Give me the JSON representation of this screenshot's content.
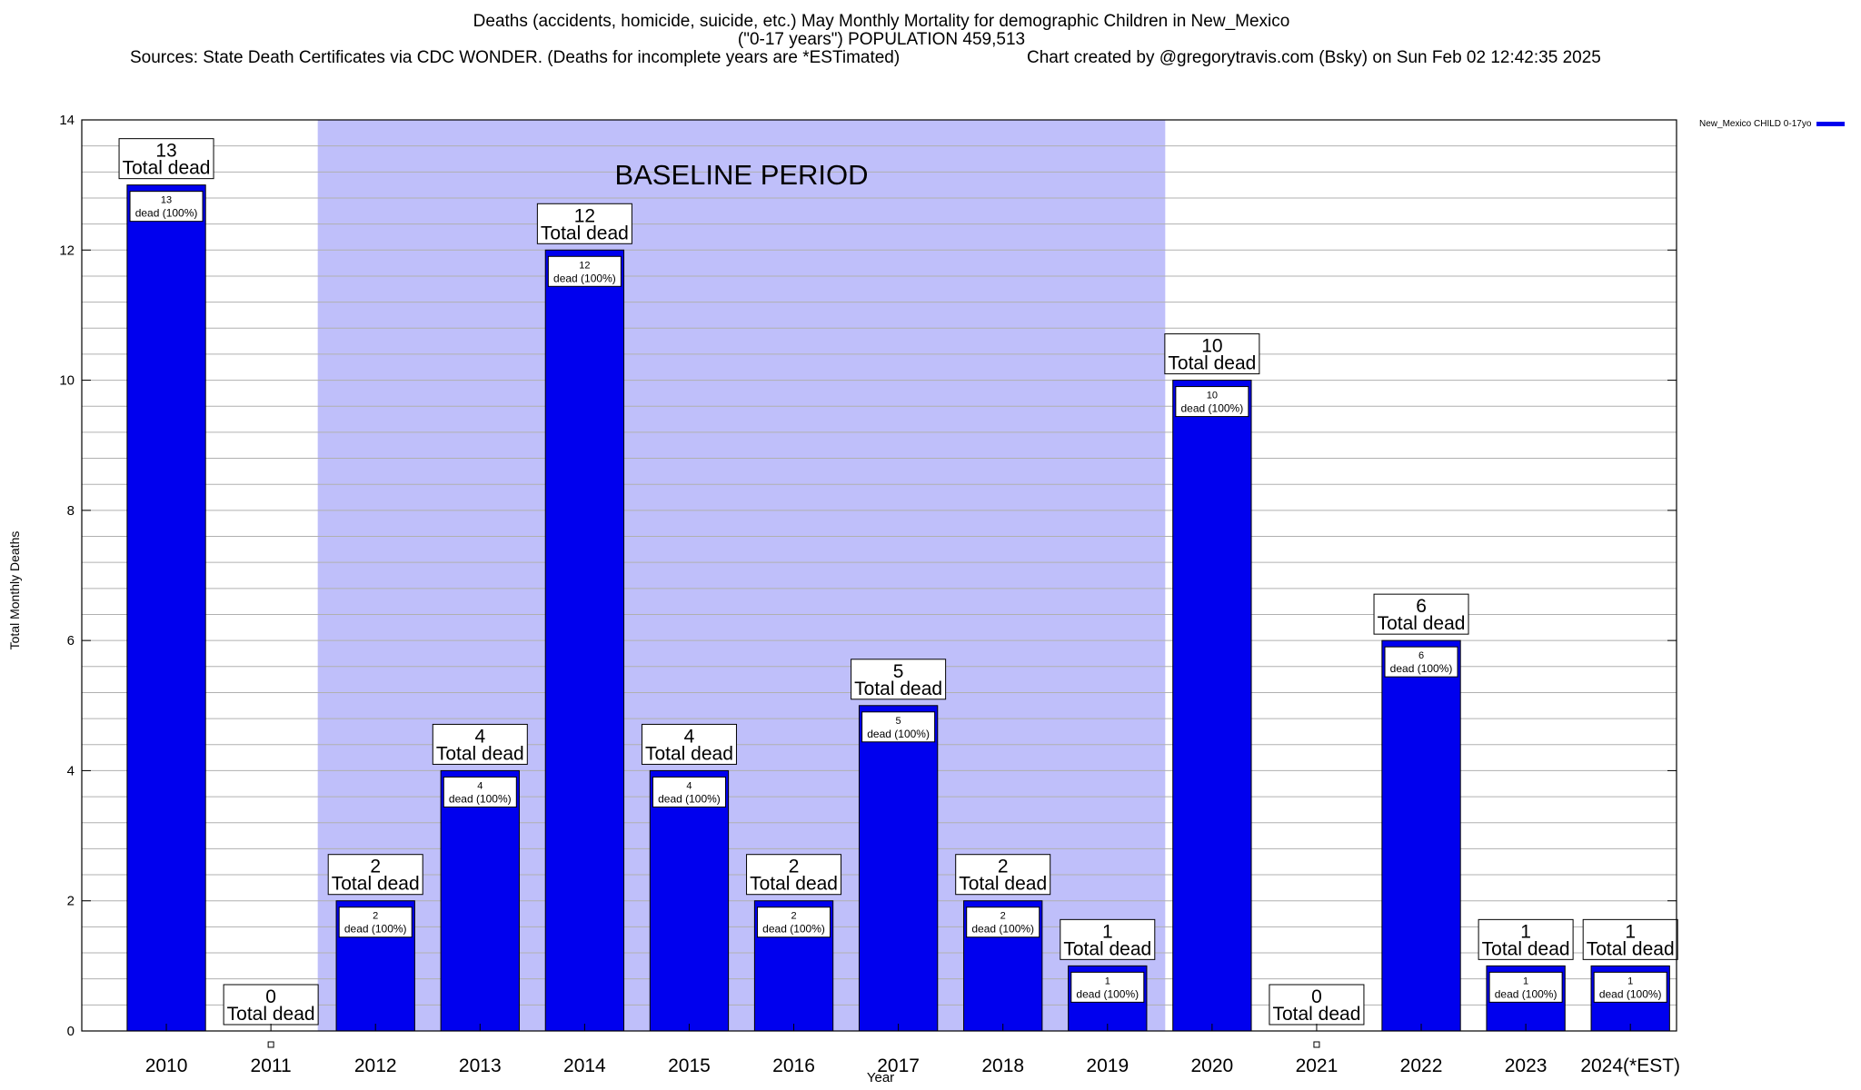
{
  "header": {
    "title_line1": "Deaths (accidents, homicide, suicide, etc.) May Monthly Mortality for demographic Children in New_Mexico",
    "title_line2": "(\"0-17 years\") POPULATION 459,513",
    "sources": "Sources: State Death Certificates via CDC WONDER. (Deaths for incomplete years are *ESTimated)",
    "credit": "Chart created by @gregorytravis.com (Bsky) on Sun Feb 02 12:42:35 2025"
  },
  "chart_data": {
    "type": "bar",
    "xlabel": "Year",
    "ylabel": "Total Monthly Deaths",
    "ylim": [
      0,
      14
    ],
    "yticks": [
      0,
      2,
      4,
      6,
      8,
      10,
      12,
      14
    ],
    "grid": true,
    "legend_position": "top-right",
    "categories": [
      "2010",
      "2011",
      "2012",
      "2013",
      "2014",
      "2015",
      "2016",
      "2017",
      "2018",
      "2019",
      "2020",
      "2021",
      "2022",
      "2023",
      "2024(*EST)"
    ],
    "series": [
      {
        "name": "New_Mexico CHILD 0-17yo",
        "color": "#0000ee",
        "values": [
          13,
          0,
          2,
          4,
          12,
          4,
          2,
          5,
          2,
          1,
          10,
          0,
          6,
          1,
          1
        ]
      }
    ],
    "total_label_suffix": "Total dead",
    "inner_label_suffix": "dead (100%)",
    "baseline": {
      "label": "BASELINE PERIOD",
      "from": "2012",
      "to": "2019",
      "color": "#bfbffa"
    }
  }
}
